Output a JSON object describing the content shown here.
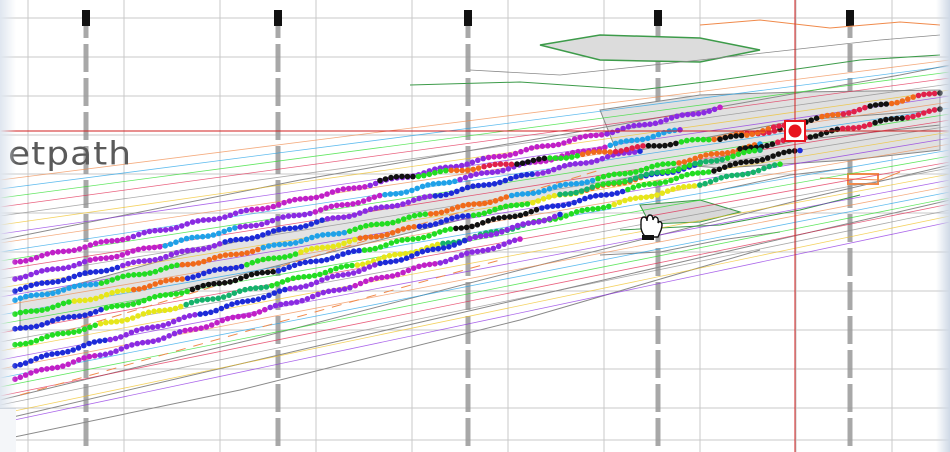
{
  "map": {
    "label_text": "etpath",
    "colors": {
      "grid": "#c8c8c8",
      "crosshair": "#d21f1f",
      "marker": "#e8141e",
      "outline_gray": "#8a8a8a",
      "outline_green": "#3d9b4a",
      "outline_orange": "#f08a4b",
      "route_colors": [
        "#1d2bd8",
        "#8a2be2",
        "#c020c8",
        "#22dd22",
        "#1fa1e8",
        "#f06a1a",
        "#e6e61a",
        "#111111",
        "#e0204a",
        "#15b26b"
      ]
    },
    "icons": {
      "cursor": "hand-grab-icon",
      "marker": "selected-point-marker-icon"
    }
  }
}
